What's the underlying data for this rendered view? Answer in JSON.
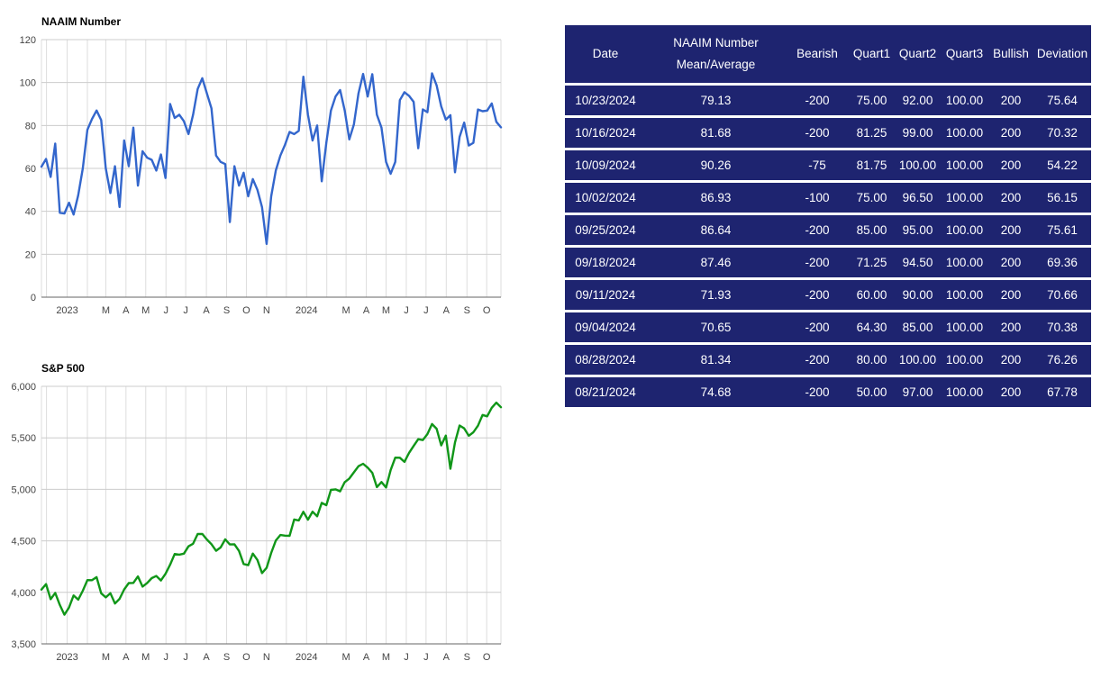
{
  "chart_data": [
    {
      "type": "line",
      "title": "NAAIM Number",
      "series_name": "NAAIM Number",
      "color": "#3366cc",
      "frequency": "weekly",
      "x_start": "11/2022",
      "x_end": "10/23/2024",
      "ylim": [
        0,
        120
      ],
      "grid": true,
      "legend_position": "none",
      "y_ticks": [
        {
          "v": 0,
          "label": "0"
        },
        {
          "v": 20,
          "label": "20"
        },
        {
          "v": 40,
          "label": "40"
        },
        {
          "v": 60,
          "label": "60"
        },
        {
          "v": 80,
          "label": "80"
        },
        {
          "v": 100,
          "label": "100"
        },
        {
          "v": 120,
          "label": "120"
        }
      ],
      "x_tick_labels": [
        {
          "label": "2023",
          "pos": 0.056
        },
        {
          "label": "M",
          "pos": 0.14
        },
        {
          "label": "A",
          "pos": 0.184
        },
        {
          "label": "M",
          "pos": 0.227
        },
        {
          "label": "J",
          "pos": 0.271
        },
        {
          "label": "J",
          "pos": 0.314
        },
        {
          "label": "A",
          "pos": 0.359
        },
        {
          "label": "S",
          "pos": 0.403
        },
        {
          "label": "O",
          "pos": 0.446
        },
        {
          "label": "N",
          "pos": 0.49
        },
        {
          "label": "2024",
          "pos": 0.577
        },
        {
          "label": "M",
          "pos": 0.663
        },
        {
          "label": "A",
          "pos": 0.707
        },
        {
          "label": "M",
          "pos": 0.75
        },
        {
          "label": "J",
          "pos": 0.794
        },
        {
          "label": "J",
          "pos": 0.837
        },
        {
          "label": "A",
          "pos": 0.881
        },
        {
          "label": "S",
          "pos": 0.926
        },
        {
          "label": "O",
          "pos": 0.969
        }
      ],
      "month_gridlines": [
        0,
        0.011,
        0.056,
        0.1,
        0.14,
        0.184,
        0.227,
        0.271,
        0.314,
        0.359,
        0.403,
        0.446,
        0.49,
        0.533,
        0.577,
        0.621,
        0.663,
        0.707,
        0.75,
        0.794,
        0.837,
        0.881,
        0.926,
        0.969,
        1
      ],
      "values": [
        60.8,
        64.4,
        56,
        71.6,
        39.3,
        39,
        44,
        38.5,
        47.5,
        60,
        78,
        83,
        87,
        82.5,
        60,
        48.5,
        61,
        42,
        73,
        61,
        79,
        52,
        68,
        65,
        64,
        59,
        66.5,
        55.5,
        90,
        83.5,
        85,
        82,
        76,
        85,
        97,
        102,
        95,
        88,
        66,
        63,
        62,
        35,
        61,
        52,
        58,
        47,
        55,
        50,
        42,
        24.8,
        47,
        59,
        66,
        71,
        77,
        76,
        77.5,
        102.7,
        85,
        73,
        80,
        54,
        72,
        87,
        93.5,
        96.5,
        87,
        73.5,
        80.5,
        95,
        104,
        93.5,
        103.9,
        85,
        79,
        63,
        57.5,
        63,
        91.8,
        95.5,
        93.8,
        91,
        69.4,
        87.5,
        86.2,
        104.3,
        98.7,
        88.9,
        82.7,
        84.8,
        58.2,
        74.68,
        81.34,
        70.65,
        71.93,
        87.46,
        86.64,
        86.93,
        90.26,
        81.68,
        79.13
      ]
    },
    {
      "type": "line",
      "title": "S&P 500",
      "series_name": "S&P 500",
      "color": "#109618",
      "frequency": "weekly",
      "x_start": "11/2022",
      "x_end": "10/23/2024",
      "ylim": [
        3500,
        6000
      ],
      "grid": true,
      "legend_position": "none",
      "y_ticks": [
        {
          "v": 3500,
          "label": "3,500"
        },
        {
          "v": 4000,
          "label": "4,000"
        },
        {
          "v": 4500,
          "label": "4,500"
        },
        {
          "v": 5000,
          "label": "5,000"
        },
        {
          "v": 5500,
          "label": "5,500"
        },
        {
          "v": 6000,
          "label": "6,000"
        }
      ],
      "x_tick_labels": [
        {
          "label": "2023",
          "pos": 0.056
        },
        {
          "label": "M",
          "pos": 0.14
        },
        {
          "label": "A",
          "pos": 0.184
        },
        {
          "label": "M",
          "pos": 0.227
        },
        {
          "label": "J",
          "pos": 0.271
        },
        {
          "label": "J",
          "pos": 0.314
        },
        {
          "label": "A",
          "pos": 0.359
        },
        {
          "label": "S",
          "pos": 0.403
        },
        {
          "label": "O",
          "pos": 0.446
        },
        {
          "label": "N",
          "pos": 0.49
        },
        {
          "label": "2024",
          "pos": 0.577
        },
        {
          "label": "M",
          "pos": 0.663
        },
        {
          "label": "A",
          "pos": 0.707
        },
        {
          "label": "M",
          "pos": 0.75
        },
        {
          "label": "J",
          "pos": 0.794
        },
        {
          "label": "J",
          "pos": 0.837
        },
        {
          "label": "A",
          "pos": 0.881
        },
        {
          "label": "S",
          "pos": 0.926
        },
        {
          "label": "O",
          "pos": 0.969
        }
      ],
      "month_gridlines": [
        0,
        0.011,
        0.056,
        0.1,
        0.14,
        0.184,
        0.227,
        0.271,
        0.314,
        0.359,
        0.403,
        0.446,
        0.49,
        0.533,
        0.577,
        0.621,
        0.663,
        0.707,
        0.75,
        0.794,
        0.837,
        0.881,
        0.926,
        0.969,
        1
      ],
      "values": [
        4027,
        4080,
        3934,
        3995,
        3878,
        3783,
        3853,
        3970,
        3929,
        4016,
        4119,
        4118,
        4148,
        3991,
        3951,
        3992,
        3892,
        3937,
        4028,
        4090,
        4092,
        4155,
        4056,
        4091,
        4138,
        4159,
        4115,
        4180,
        4268,
        4372,
        4366,
        4376,
        4447,
        4472,
        4566,
        4567,
        4513,
        4468,
        4404,
        4436,
        4515,
        4465,
        4467,
        4402,
        4275,
        4264,
        4377,
        4315,
        4187,
        4238,
        4383,
        4503,
        4557,
        4551,
        4549,
        4707,
        4698,
        4782,
        4705,
        4783,
        4739,
        4869,
        4846,
        4995,
        5000,
        4981,
        5070,
        5105,
        5165,
        5225,
        5248,
        5211,
        5161,
        5022,
        5071,
        5018,
        5188,
        5308,
        5307,
        5267,
        5354,
        5421,
        5487,
        5478,
        5537,
        5634,
        5588,
        5427,
        5522,
        5199,
        5455,
        5620,
        5592,
        5520,
        5554,
        5618,
        5722,
        5709,
        5792,
        5842,
        5797
      ]
    }
  ],
  "table": {
    "columns": [
      [
        "Date"
      ],
      [
        "NAAIM Number",
        "Mean/Average"
      ],
      [
        "Bearish"
      ],
      [
        "Quart1"
      ],
      [
        "Quart2"
      ],
      [
        "Quart3"
      ],
      [
        "Bullish"
      ],
      [
        "Deviation"
      ]
    ],
    "rows": [
      [
        "10/23/2024",
        "79.13",
        "-200",
        "75.00",
        "92.00",
        "100.00",
        "200",
        "75.64"
      ],
      [
        "10/16/2024",
        "81.68",
        "-200",
        "81.25",
        "99.00",
        "100.00",
        "200",
        "70.32"
      ],
      [
        "10/09/2024",
        "90.26",
        "-75",
        "81.75",
        "100.00",
        "100.00",
        "200",
        "54.22"
      ],
      [
        "10/02/2024",
        "86.93",
        "-100",
        "75.00",
        "96.50",
        "100.00",
        "200",
        "56.15"
      ],
      [
        "09/25/2024",
        "86.64",
        "-200",
        "85.00",
        "95.00",
        "100.00",
        "200",
        "75.61"
      ],
      [
        "09/18/2024",
        "87.46",
        "-200",
        "71.25",
        "94.50",
        "100.00",
        "200",
        "69.36"
      ],
      [
        "09/11/2024",
        "71.93",
        "-200",
        "60.00",
        "90.00",
        "100.00",
        "200",
        "70.66"
      ],
      [
        "09/04/2024",
        "70.65",
        "-200",
        "64.30",
        "85.00",
        "100.00",
        "200",
        "70.38"
      ],
      [
        "08/28/2024",
        "81.34",
        "-200",
        "80.00",
        "100.00",
        "100.00",
        "200",
        "76.26"
      ],
      [
        "08/21/2024",
        "74.68",
        "-200",
        "50.00",
        "97.00",
        "100.00",
        "200",
        "67.78"
      ]
    ],
    "colors": {
      "header_bg": "#1e2470",
      "row_bg": "#1e2470",
      "text": "#ffffff",
      "separator": "#ffffff"
    }
  },
  "axis_style": {
    "tick_label_color": "#444444",
    "gridline_color": "#cccccc",
    "month_gridline_color": "#dddddd",
    "baseline_color": "#666666"
  }
}
